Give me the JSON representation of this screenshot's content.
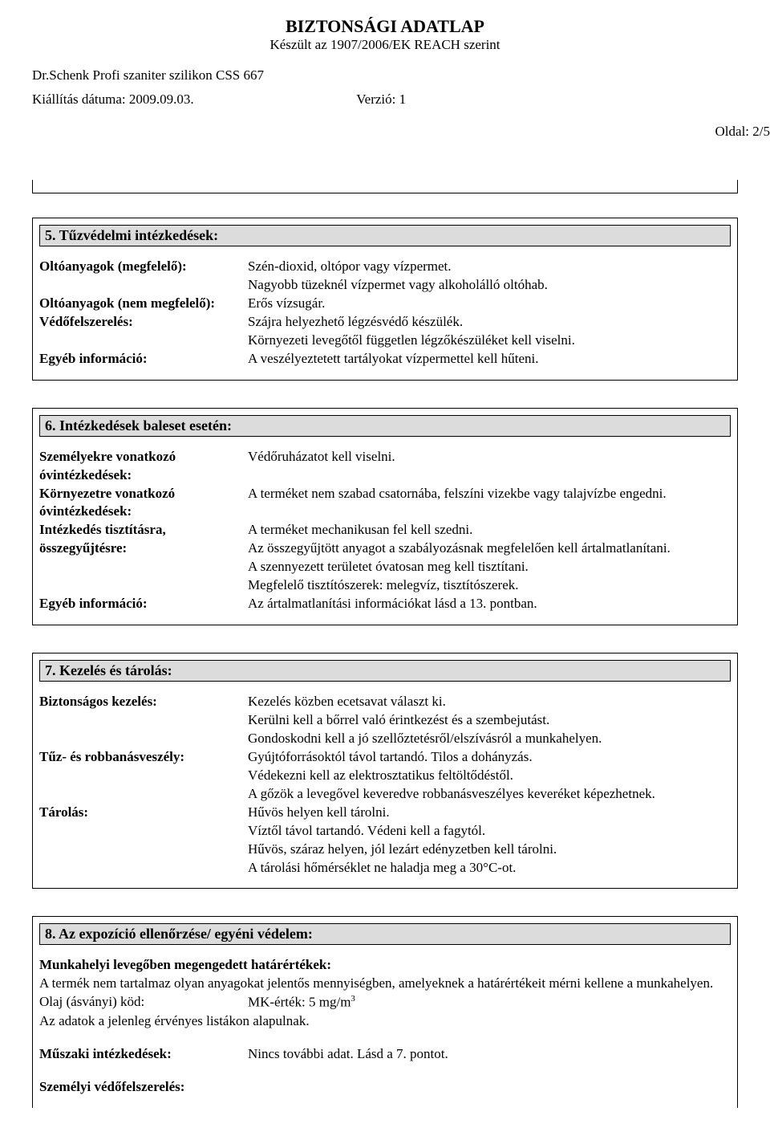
{
  "header": {
    "title": "BIZTONSÁGI ADATLAP",
    "subtitle": "Készült az 1907/2006/EK REACH szerint",
    "product": "Dr.Schenk Profi szaniter szilikon CSS 667",
    "date_label": "Kiállítás dátuma: 2009.09.03.",
    "version": "Verzió: 1",
    "page": "Oldal: 2/5"
  },
  "section5": {
    "heading": "5. Tűzvédelmi intézkedések:",
    "r1k": "Oltóanyagok (megfelelő):",
    "r1v1": "Szén-dioxid, oltópor vagy vízpermet.",
    "r1v2": "Nagyobb tüzeknél vízpermet vagy alkoholálló oltóhab.",
    "r2k": "Oltóanyagok (nem megfelelő):",
    "r2v": "Erős vízsugár.",
    "r3k": "Védőfelszerelés:",
    "r3v1": "Szájra helyezhető légzésvédő készülék.",
    "r3v2": "Környezeti levegőtől független légzőkészüléket kell viselni.",
    "r4k": "Egyéb információ:",
    "r4v": "A veszélyeztetett tartályokat vízpermettel kell hűteni."
  },
  "section6": {
    "heading": "6. Intézkedések baleset esetén:",
    "r1k1": "Személyekre vonatkozó",
    "r1k2": "óvintézkedések:",
    "r1v": "Védőruházatot kell viselni.",
    "r2k1": "Környezetre vonatkozó",
    "r2k2": "óvintézkedések:",
    "r2v": "A terméket nem szabad csatornába, felszíni vizekbe vagy talajvízbe engedni.",
    "r3k1": "Intézkedés tisztításra,",
    "r3k2": "összegyűjtésre:",
    "r3v1": "A terméket mechanikusan fel kell szedni.",
    "r3v2": "Az összegyűjtött anyagot a szabályozásnak megfelelően kell ártalmatlanítani.",
    "r3v3": "A szennyezett területet óvatosan meg kell tisztítani.",
    "r3v4": "Megfelelő tisztítószerek: melegvíz, tisztítószerek.",
    "r4k": "Egyéb információ:",
    "r4v": "Az ártalmatlanítási információkat lásd a 13. pontban."
  },
  "section7": {
    "heading": "7. Kezelés és tárolás:",
    "r1k": "Biztonságos kezelés:",
    "r1v1": "Kezelés közben ecetsavat választ ki.",
    "r1v2": "Kerülni kell a bőrrel való érintkezést és a szembejutást.",
    "r1v3": "Gondoskodni kell a jó szellőztetésről/elszívásról a munkahelyen.",
    "r2k": "Tűz- és robbanásveszély:",
    "r2v1": "Gyújtóforrásoktól távol tartandó. Tilos a dohányzás.",
    "r2v2": "Védekezni kell az elektrosztatikus feltöltődéstől.",
    "r2v3": "A gőzök a levegővel keveredve robbanásveszélyes keveréket képezhetnek.",
    "r3k": "Tárolás:",
    "r3v1": "Hűvös helyen kell tárolni.",
    "r3v2": "Víztől távol tartandó. Védeni kell a fagytól.",
    "r3v3": "Hűvös, száraz helyen, jól lezárt edényzetben kell tárolni.",
    "r3v4": "A tárolási hőmérséklet ne haladja meg a 30°C-ot."
  },
  "section8": {
    "heading": "8. Az expozíció ellenőrzése/ egyéni védelem:",
    "p1_bold": "Munkahelyi levegőben megengedett határértékek:",
    "p1_text": "A termék nem tartalmaz olyan anyagokat jelentős mennyiségben, amelyeknek a határértékeit mérni kellene a munkahelyen.",
    "p2_label": "Olaj (ásványi) köd:",
    "p2_value": "MK-érték: 5 mg/m",
    "p2_exp": "3",
    "p3": "Az adatok a jelenleg érvényes listákon alapulnak.",
    "r1k": "Műszaki intézkedések:",
    "r1v": "Nincs további adat. Lásd a 7. pontot.",
    "r2k": "Személyi védőfelszerelés:"
  }
}
